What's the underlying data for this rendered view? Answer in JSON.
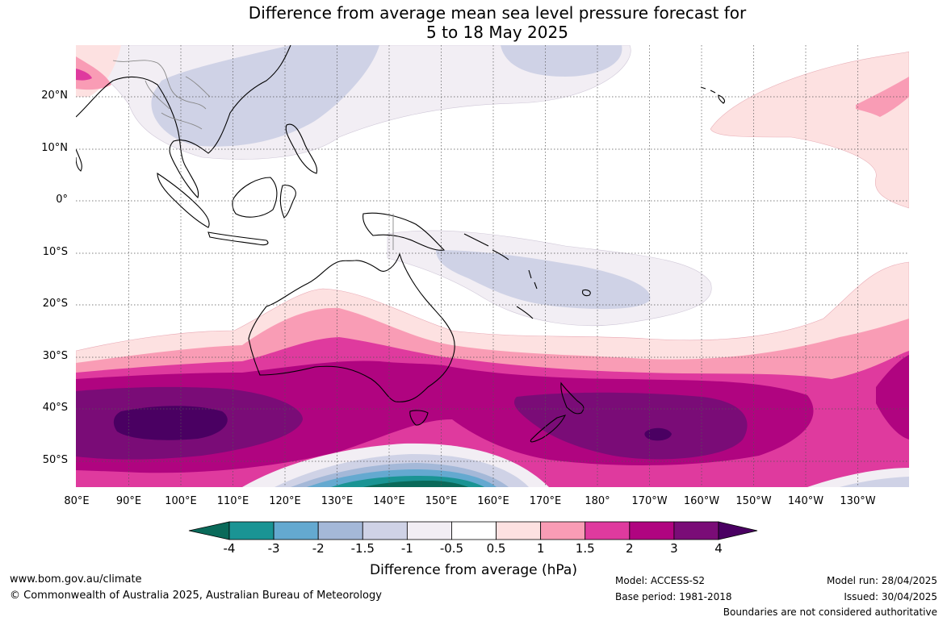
{
  "title_line1": "Difference from average mean sea level pressure forecast for",
  "title_line2": "5 to 18 May 2025",
  "lat_labels": [
    "20°N",
    "10°N",
    "0°",
    "10°S",
    "20°S",
    "30°S",
    "40°S",
    "50°S"
  ],
  "lon_labels": [
    "80°E",
    "90°E",
    "100°E",
    "110°E",
    "120°E",
    "130°E",
    "140°E",
    "150°E",
    "160°E",
    "170°E",
    "180°",
    "170°W",
    "160°W",
    "150°W",
    "140°W",
    "130°W"
  ],
  "colorbar": {
    "ticks": [
      "-4",
      "-3",
      "-2",
      "-1.5",
      "-1",
      "-0.5",
      "0.5",
      "1",
      "1.5",
      "2",
      "3",
      "4"
    ],
    "colors": [
      "#0a6a5a",
      "#1a9494",
      "#64a9d0",
      "#a4b8d8",
      "#cfd2e6",
      "#f2eef4",
      "#ffffff",
      "#fde1e1",
      "#f99cb5",
      "#df3a9e",
      "#b00480",
      "#7a0c77",
      "#4a0062"
    ],
    "label": "Difference from average (hPa)"
  },
  "footer": {
    "url": "www.bom.gov.au/climate",
    "copyright": "© Commonwealth of Australia 2025, Australian Bureau of Meteorology",
    "model": "Model: ACCESS-S2",
    "base_period": "Base period: 1981-2018",
    "model_run": "Model run: 28/04/2025",
    "issued": "Issued: 30/04/2025",
    "boundaries": "Boundaries are not considered authoritative"
  }
}
